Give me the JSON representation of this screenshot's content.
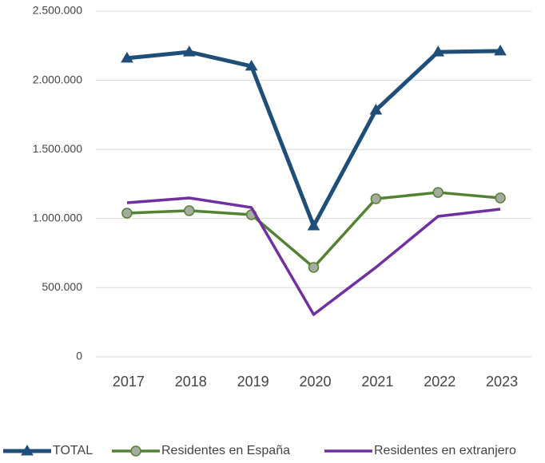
{
  "chart_data": {
    "type": "line",
    "categories": [
      "2017",
      "2018",
      "2019",
      "2020",
      "2021",
      "2022",
      "2023"
    ],
    "series": [
      {
        "name": "TOTAL",
        "color": "#1f4e79",
        "marker": "triangle",
        "values": [
          2160000,
          2205000,
          2102000,
          947000,
          1784000,
          2205000,
          2212000
        ]
      },
      {
        "name": "Residentes en España",
        "color": "#548235",
        "marker": "circle",
        "values": [
          1039000,
          1057000,
          1028000,
          647000,
          1143000,
          1189000,
          1149000
        ]
      },
      {
        "name": "Residentes en extranjero",
        "color": "#7030a0",
        "marker": "none",
        "values": [
          1114000,
          1149000,
          1080000,
          306000,
          647000,
          1016000,
          1068000
        ]
      }
    ],
    "ylim": [
      0,
      2500000
    ],
    "yticks": [
      0,
      {
        "value": 500000,
        "label": "500.000"
      },
      {
        "value": 1000000,
        "label": "1.000.000"
      },
      {
        "value": 1500000,
        "label": "1.500.000"
      },
      {
        "value": 2000000,
        "label": "2.000.000"
      },
      {
        "value": 2500000,
        "label": "2.500.000"
      }
    ],
    "grid": true,
    "legend": "bottom"
  }
}
